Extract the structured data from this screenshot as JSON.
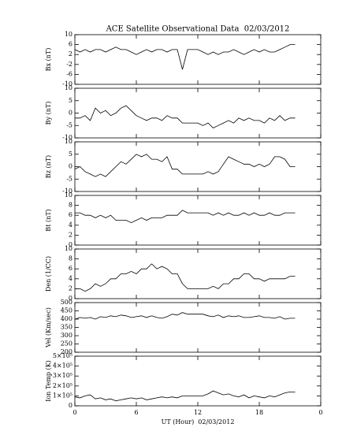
{
  "chart_data": [
    {
      "type": "line",
      "title": "ACE Satellite Observational Data  02/03/2012",
      "ylabel": "Bx (nT)",
      "ylim": [
        -10,
        10
      ],
      "yticks": [
        -10,
        -6,
        -2,
        2,
        6,
        10
      ],
      "x": [
        0,
        0.5,
        1,
        1.5,
        2,
        2.5,
        3,
        3.5,
        4,
        4.5,
        5,
        5.5,
        6,
        6.5,
        7,
        7.5,
        8,
        8.5,
        9,
        9.5,
        10,
        10.5,
        11,
        11.5,
        12,
        12.5,
        13,
        13.5,
        14,
        14.5,
        15,
        15.5,
        16,
        16.5,
        17,
        17.5,
        18,
        18.5,
        19,
        19.5,
        20,
        20.5,
        21,
        21.5
      ],
      "values": [
        4,
        3,
        4,
        3,
        4,
        4,
        3,
        4,
        5,
        4,
        4,
        3,
        2,
        3,
        4,
        3,
        4,
        4,
        3,
        4,
        4,
        -4,
        4,
        4,
        4,
        3,
        2,
        3,
        2,
        3,
        3,
        4,
        3,
        2,
        3,
        4,
        3,
        4,
        3,
        3,
        4,
        5,
        6,
        6
      ]
    },
    {
      "type": "line",
      "ylabel": "By (nT)",
      "ylim": [
        -10,
        10
      ],
      "yticks": [
        -10,
        -5,
        0,
        5,
        10
      ],
      "x": [
        0,
        0.5,
        1,
        1.5,
        2,
        2.5,
        3,
        3.5,
        4,
        4.5,
        5,
        5.5,
        6,
        6.5,
        7,
        7.5,
        8,
        8.5,
        9,
        9.5,
        10,
        10.5,
        11,
        11.5,
        12,
        12.5,
        13,
        13.5,
        14,
        14.5,
        15,
        15.5,
        16,
        16.5,
        17,
        17.5,
        18,
        18.5,
        19,
        19.5,
        20,
        20.5,
        21,
        21.5
      ],
      "values": [
        -2,
        -2,
        -1,
        -3,
        2,
        0,
        1,
        -1,
        0,
        2,
        3,
        1,
        -1,
        -2,
        -3,
        -2,
        -2,
        -3,
        -1,
        -2,
        -2,
        -4,
        -4,
        -4,
        -4,
        -5,
        -4,
        -6,
        -5,
        -4,
        -3,
        -4,
        -2,
        -3,
        -2,
        -3,
        -3,
        -4,
        -2,
        -3,
        -1,
        -3,
        -2,
        -2
      ]
    },
    {
      "type": "line",
      "ylabel": "Bz (nT)",
      "ylim": [
        -10,
        10
      ],
      "yticks": [
        -10,
        -5,
        0,
        5,
        10
      ],
      "x": [
        0,
        0.5,
        1,
        1.5,
        2,
        2.5,
        3,
        3.5,
        4,
        4.5,
        5,
        5.5,
        6,
        6.5,
        7,
        7.5,
        8,
        8.5,
        9,
        9.5,
        10,
        10.5,
        11,
        11.5,
        12,
        12.5,
        13,
        13.5,
        14,
        14.5,
        15,
        15.5,
        16,
        16.5,
        17,
        17.5,
        18,
        18.5,
        19,
        19.5,
        20,
        20.5,
        21,
        21.5
      ],
      "values": [
        -1,
        0,
        -2,
        -3,
        -4,
        -3,
        -4,
        -2,
        0,
        2,
        1,
        3,
        5,
        4,
        5,
        3,
        3,
        2,
        4,
        -1,
        -1,
        -3,
        -3,
        -3,
        -3,
        -3,
        -2,
        -3,
        -2,
        1,
        4,
        3,
        2,
        1,
        1,
        0,
        1,
        0,
        1,
        4,
        4,
        3,
        0,
        0
      ]
    },
    {
      "type": "line",
      "ylabel": "Bt (nT)",
      "ylim": [
        0,
        10
      ],
      "yticks": [
        0,
        2,
        4,
        6,
        8,
        10
      ],
      "x": [
        0,
        0.5,
        1,
        1.5,
        2,
        2.5,
        3,
        3.5,
        4,
        4.5,
        5,
        5.5,
        6,
        6.5,
        7,
        7.5,
        8,
        8.5,
        9,
        9.5,
        10,
        10.5,
        11,
        11.5,
        12,
        12.5,
        13,
        13.5,
        14,
        14.5,
        15,
        15.5,
        16,
        16.5,
        17,
        17.5,
        18,
        18.5,
        19,
        19.5,
        20,
        20.5,
        21,
        21.5
      ],
      "values": [
        6.5,
        6.5,
        6,
        6,
        5.5,
        6,
        5.5,
        6,
        5,
        5,
        5,
        4.5,
        5,
        5.5,
        5,
        5.5,
        5.5,
        5.5,
        6,
        6,
        6,
        7,
        6.5,
        6.5,
        6.5,
        6.5,
        6.5,
        6,
        6.5,
        6,
        6.5,
        6,
        6,
        6.5,
        6,
        6.5,
        6,
        6,
        6.5,
        6,
        6,
        6.5,
        6.5,
        6.5
      ]
    },
    {
      "type": "line",
      "ylabel": "Den (1/CC)",
      "ylim": [
        0,
        10
      ],
      "yticks": [
        0,
        2,
        4,
        6,
        8,
        10
      ],
      "x": [
        0,
        0.5,
        1,
        1.5,
        2,
        2.5,
        3,
        3.5,
        4,
        4.5,
        5,
        5.5,
        6,
        6.5,
        7,
        7.5,
        8,
        8.5,
        9,
        9.5,
        10,
        10.5,
        11,
        11.5,
        12,
        12.5,
        13,
        13.5,
        14,
        14.5,
        15,
        15.5,
        16,
        16.5,
        17,
        17.5,
        18,
        18.5,
        19,
        19.5,
        20,
        20.5,
        21,
        21.5
      ],
      "values": [
        2,
        2,
        1.5,
        2,
        3,
        2.5,
        3,
        4,
        4,
        5,
        5,
        5.5,
        5,
        6,
        6,
        7,
        6,
        6.5,
        6,
        5,
        5,
        3,
        2,
        2,
        2,
        2,
        2,
        2.5,
        2,
        3,
        3,
        4,
        4,
        5,
        5,
        4,
        4,
        3.5,
        4,
        4,
        4,
        4,
        4.5,
        4.5
      ]
    },
    {
      "type": "line",
      "ylabel": "Vel (Km/sec)",
      "ylim": [
        200,
        500
      ],
      "yticks": [
        200,
        250,
        300,
        350,
        400,
        450,
        500
      ],
      "x": [
        0,
        0.5,
        1,
        1.5,
        2,
        2.5,
        3,
        3.5,
        4,
        4.5,
        5,
        5.5,
        6,
        6.5,
        7,
        7.5,
        8,
        8.5,
        9,
        9.5,
        10,
        10.5,
        11,
        11.5,
        12,
        12.5,
        13,
        13.5,
        14,
        14.5,
        15,
        15.5,
        16,
        16.5,
        17,
        17.5,
        18,
        18.5,
        19,
        19.5,
        20,
        20.5,
        21,
        21.5
      ],
      "values": [
        400,
        410,
        405,
        410,
        400,
        415,
        410,
        420,
        415,
        425,
        420,
        410,
        415,
        420,
        410,
        420,
        410,
        405,
        415,
        430,
        425,
        440,
        430,
        430,
        430,
        430,
        420,
        415,
        425,
        410,
        420,
        415,
        420,
        410,
        410,
        415,
        420,
        410,
        410,
        405,
        415,
        400,
        405,
        405
      ]
    },
    {
      "type": "line",
      "ylabel": "Ion Temp (K)",
      "xlabel": "UT (Hour)  02/03/2012",
      "ylim": [
        0,
        500000
      ],
      "yticks": [
        0,
        {
          "value": 100000,
          "label": "1×10⁵"
        },
        {
          "value": 200000,
          "label": "2×10⁵"
        },
        {
          "value": 300000,
          "label": "3×10⁵"
        },
        {
          "value": 400000,
          "label": "4×10⁵"
        },
        {
          "value": 500000,
          "label": "5×10⁵"
        }
      ],
      "xlim": [
        0,
        24
      ],
      "xticks": [
        0,
        6,
        12,
        18,
        {
          "value": 24,
          "label": "0"
        }
      ],
      "x": [
        0,
        0.5,
        1,
        1.5,
        2,
        2.5,
        3,
        3.5,
        4,
        4.5,
        5,
        5.5,
        6,
        6.5,
        7,
        7.5,
        8,
        8.5,
        9,
        9.5,
        10,
        10.5,
        11,
        11.5,
        12,
        12.5,
        13,
        13.5,
        14,
        14.5,
        15,
        15.5,
        16,
        16.5,
        17,
        17.5,
        18,
        18.5,
        19,
        19.5,
        20,
        20.5,
        21,
        21.5
      ],
      "values": [
        90000,
        80000,
        100000,
        110000,
        70000,
        80000,
        60000,
        70000,
        50000,
        60000,
        70000,
        80000,
        70000,
        80000,
        60000,
        70000,
        80000,
        90000,
        80000,
        90000,
        80000,
        100000,
        100000,
        100000,
        100000,
        100000,
        120000,
        150000,
        130000,
        110000,
        120000,
        100000,
        90000,
        110000,
        80000,
        100000,
        90000,
        80000,
        100000,
        90000,
        110000,
        130000,
        140000,
        140000
      ]
    }
  ]
}
